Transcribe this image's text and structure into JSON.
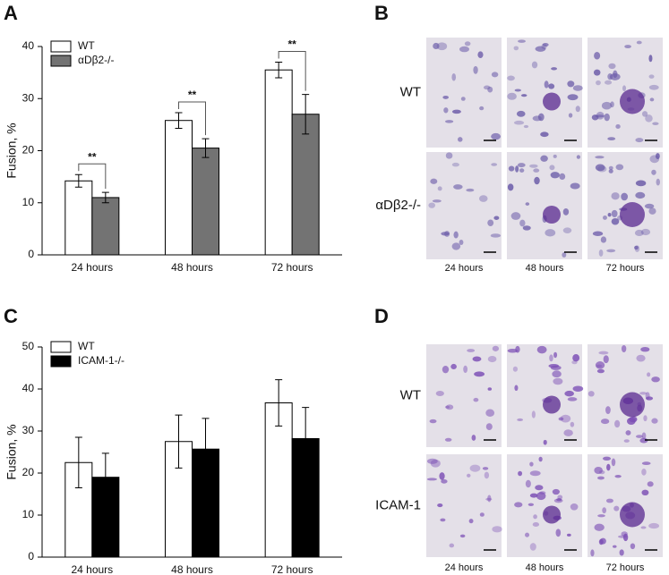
{
  "chart_data": [
    {
      "type": "bar",
      "ylabel": "Fusion, %",
      "categories": [
        "24 hours",
        "48 hours",
        "72 hours"
      ],
      "series": [
        {
          "name": "WT",
          "color": "#ffffff",
          "values": [
            14.2,
            25.8,
            35.5
          ],
          "errors": [
            1.2,
            1.5,
            1.5
          ]
        },
        {
          "name": "αDβ2-/-",
          "color": "#737373",
          "values": [
            11,
            20.5,
            27
          ],
          "errors": [
            1,
            1.8,
            3.8
          ]
        }
      ],
      "annotations": [
        "**",
        "**",
        "**"
      ],
      "ylim": [
        0,
        40
      ],
      "yticks": [
        0,
        10,
        20,
        30,
        40
      ]
    },
    {
      "type": "bar",
      "ylabel": "Fusion, %",
      "categories": [
        "24 hours",
        "48 hours",
        "72 hours"
      ],
      "series": [
        {
          "name": "WT",
          "color": "#ffffff",
          "values": [
            22.5,
            27.5,
            36.7
          ],
          "errors": [
            6,
            6.3,
            5.5
          ]
        },
        {
          "name": "ICAM-1-/-",
          "color": "#000000",
          "values": [
            19,
            25.7,
            28.2
          ],
          "errors": [
            5.7,
            7.3,
            7.4
          ]
        }
      ],
      "ylim": [
        0,
        50
      ],
      "yticks": [
        0,
        10,
        20,
        30,
        40,
        50
      ]
    }
  ],
  "panel_labels": [
    "A",
    "B",
    "C",
    "D"
  ],
  "panel_b": {
    "rows": [
      "WT",
      "αDβ2-/-"
    ],
    "columns": [
      "24 hours",
      "48 hours",
      "72 hours"
    ]
  },
  "panel_d": {
    "rows": [
      "WT",
      "ICAM-1"
    ],
    "columns": [
      "24 hours",
      "48 hours",
      "72 hours"
    ]
  }
}
